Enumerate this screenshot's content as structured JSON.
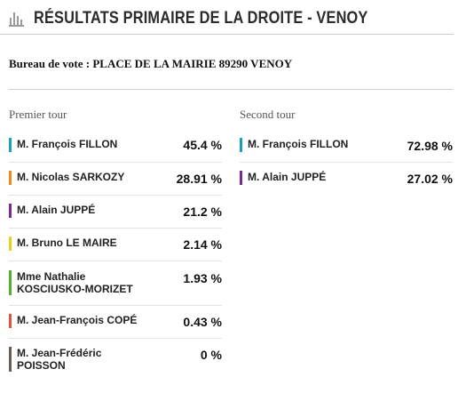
{
  "header": {
    "title": "RÉSULTATS PRIMAIRE DE LA DROITE - VENOY",
    "icon": "bar-chart-icon"
  },
  "bureau": "Bureau de vote : PLACE DE LA MAIRIE 89290 VENOY",
  "first_round": {
    "title": "Premier tour",
    "candidates": [
      {
        "name": "M. François FILLON",
        "value": "45.4 %",
        "color": "#1aa0bd"
      },
      {
        "name": "M. Nicolas SARKOZY",
        "value": "28.91 %",
        "color": "#ef8a20"
      },
      {
        "name": "M. Alain JUPPÉ",
        "value": "21.2 %",
        "color": "#7a2a8c"
      },
      {
        "name": "M. Bruno LE MAIRE",
        "value": "2.14 %",
        "color": "#e6d21e"
      },
      {
        "name": "Mme Nathalie KOSCIUSKO-MORIZET",
        "name_line1": "Mme Nathalie",
        "name_line2": "KOSCIUSKO-MORIZET",
        "value": "1.93 %",
        "color": "#5aae2e"
      },
      {
        "name": "M. Jean-François COPÉ",
        "value": "0.43 %",
        "color": "#e0523e"
      },
      {
        "name": "M. Jean-Frédéric POISSON",
        "name_line1": "M. Jean-Frédéric",
        "name_line2": "POISSON",
        "value": "0 %",
        "color": "#6e5a55"
      }
    ]
  },
  "second_round": {
    "title": "Second tour",
    "candidates": [
      {
        "name": "M. François FILLON",
        "value": "72.98 %",
        "color": "#1aa0bd"
      },
      {
        "name": "M. Alain JUPPÉ",
        "value": "27.02 %",
        "color": "#7a2a8c"
      }
    ]
  }
}
